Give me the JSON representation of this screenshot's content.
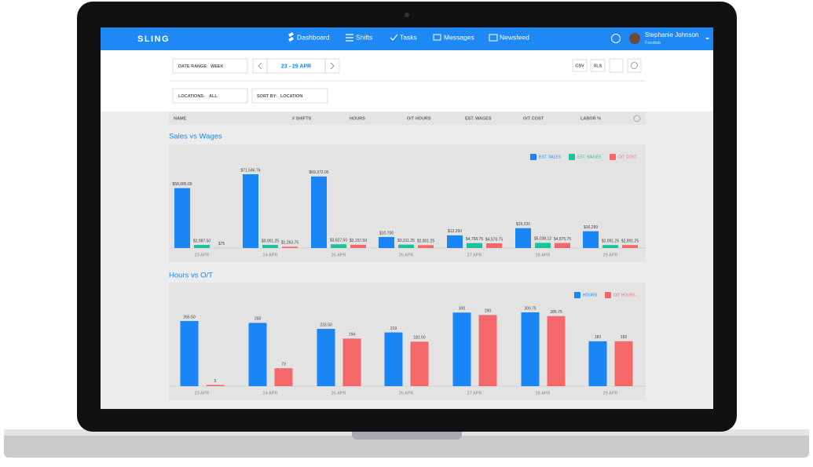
{
  "app": {
    "brand": "SLING",
    "nav": [
      "Dashboard",
      "Shifts",
      "Tasks",
      "Messages",
      "Newsfeed"
    ],
    "user": {
      "name": "Stephanie Johnson",
      "org": "Foodlab"
    }
  },
  "filters": {
    "date_range_label": "DATE RANGE:",
    "date_range_value": "WEEK",
    "week": "23 - 29 APR",
    "export": [
      "CSV",
      "XLS"
    ],
    "locations_label": "LOCATIONS:",
    "locations_value": "ALL",
    "sort_label": "SORT BY:",
    "sort_value": "LOCATION"
  },
  "table": {
    "columns": [
      "NAME",
      "# SHIFTS",
      "HOURS",
      "O/T HOURS",
      "EST. WAGES",
      "O/T COST",
      "LABOR %"
    ]
  },
  "chart_data": [
    {
      "type": "bar",
      "title": "Sales vs Wages",
      "categories": [
        "23 APR",
        "24 APR",
        "25 APR",
        "26 APR",
        "27 APR",
        "28 APR",
        "29 APR"
      ],
      "series": [
        {
          "name": "EST. SALES",
          "color": "#1a86f5",
          "values": [
            58085.09,
            71546.76,
            69372.05,
            10700,
            12260,
            19230,
            16289
          ],
          "value_labels": [
            "$58,085.09",
            "$71,546.76",
            "$69,372.05",
            "$10,700",
            "$12,260",
            "$19,230",
            "$16,289"
          ]
        },
        {
          "name": "EST. WAGES",
          "color": "#19c39b",
          "values": [
            2987.5,
            3001.25,
            3627.5,
            3311.25,
            4758.75,
            5038.12,
            2891.25
          ],
          "value_labels": [
            "$2,987.50",
            "$3,001.25",
            "$3,627.50",
            "$3,311.25",
            "$4,758.75",
            "$5,038.12",
            "$2,891.25"
          ]
        },
        {
          "name": "O/T COST",
          "color": "#f5686a",
          "values": [
            75,
            1263.75,
            3157.5,
            2801.25,
            4578.75,
            4875.75,
            2891.25
          ],
          "value_labels": [
            "$75",
            "$1,263.75",
            "$3,157.50",
            "$2,801.25",
            "$4,578.75",
            "$4,875.75",
            "$2,891.25"
          ]
        }
      ]
    },
    {
      "type": "bar",
      "title": "Hours vs O/T",
      "categories": [
        "23 APR",
        "24 APR",
        "25 APR",
        "26 APR",
        "27 APR",
        "28 APR",
        "29 APR"
      ],
      "series": [
        {
          "name": "HOURS",
          "color": "#1a86f5",
          "values": [
            265.5,
            258,
            233.5,
            219,
            300,
            300.75,
            183
          ],
          "value_labels": [
            "265.50",
            "258",
            "233.50",
            "219",
            "300",
            "300.75",
            "183"
          ]
        },
        {
          "name": "O/T HOURS",
          "color": "#f5686a",
          "values": [
            5,
            73,
            194,
            181.5,
            290,
            285.75,
            183
          ],
          "value_labels": [
            "5",
            "73",
            "194",
            "181.50",
            "290",
            "285.75",
            "183"
          ]
        }
      ]
    }
  ]
}
